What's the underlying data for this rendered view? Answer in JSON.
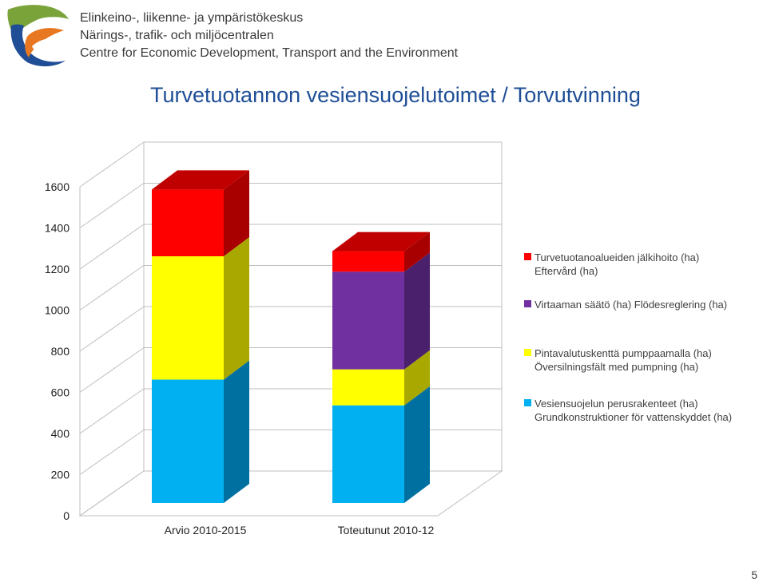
{
  "organization": {
    "line1": "Elinkeino-, liikenne- ja ympäristökeskus",
    "line2": "Närings-, trafik- och miljöcentralen",
    "line3": "Centre for Economic Development, Transport and the Environment"
  },
  "slide_title": "Turvetuotannon vesiensuojelutoimet  / Torvutvinning",
  "page_number": "5",
  "colors": {
    "logo_green": "#7aa33a",
    "logo_blue": "#1f4e96",
    "logo_orange": "#e87722"
  },
  "chart_data": {
    "type": "bar",
    "stacked": true,
    "three_d": true,
    "categories": [
      "Arvio 2010-2015",
      "Toteutunut 2010-12"
    ],
    "yticks": [
      "0",
      "200",
      "400",
      "600",
      "800",
      "1000",
      "1200",
      "1400",
      "1600"
    ],
    "ylim": [
      0,
      1600
    ],
    "grid": true,
    "legend_position": "right",
    "series": [
      {
        "name": "Vesiensuojelun perusrakenteet (ha)\nGrundkonstruktioner för vattenskyddet (ha)",
        "color": "#00b0f0",
        "side_color": "#0070a0",
        "values": [
          600,
          475
        ]
      },
      {
        "name": "Pintavalutuskenttä pumppaamalla (ha)\nÖversilningsfält med pumpning (ha)",
        "color": "#ffff00",
        "side_color": "#a8a800",
        "values": [
          600,
          175
        ]
      },
      {
        "name": "Virtaaman säätö (ha) Flödesreglering (ha)",
        "color": "#7030a0",
        "side_color": "#4a1f6b",
        "values": [
          0,
          475
        ]
      },
      {
        "name": "Turvetuotanoalueiden jälkihoito (ha)\nEftervård (ha)",
        "color": "#ff0000",
        "side_color": "#a80000",
        "values": [
          325,
          100
        ]
      }
    ],
    "legend_order": [
      3,
      2,
      1,
      0
    ]
  }
}
